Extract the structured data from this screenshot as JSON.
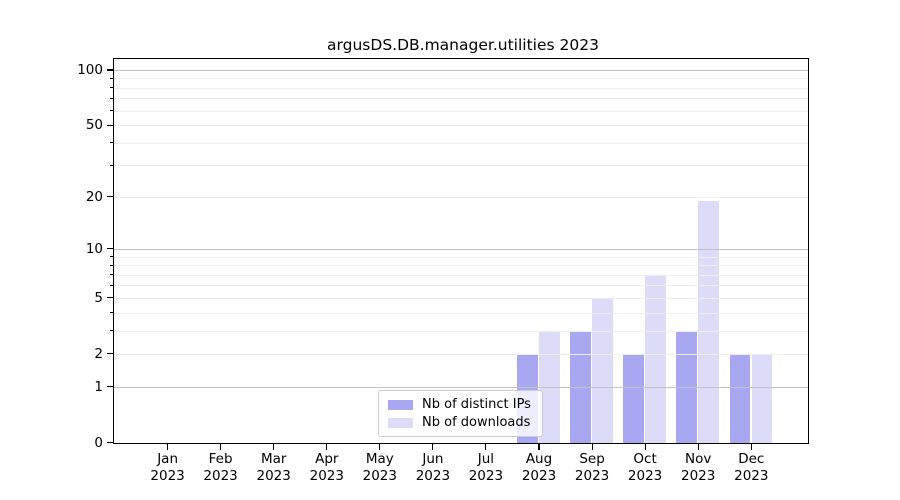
{
  "title": "argusDS.DB.manager.utilities 2023",
  "colors": {
    "bar_distinct_ips": "#a7a7f2",
    "bar_downloads": "#dcdcf8",
    "grid_major": "#c2c2c2",
    "grid_minor": "#ededed",
    "axis": "#000000",
    "legend_border": "#cccccc"
  },
  "y_axis": {
    "tick_labels": [
      "100",
      "50",
      "20",
      "10",
      "5",
      "2",
      "1",
      "0"
    ]
  },
  "x_axis": {
    "year": "2023",
    "months": [
      "Jan",
      "Feb",
      "Mar",
      "Apr",
      "May",
      "Jun",
      "Jul",
      "Aug",
      "Sep",
      "Oct",
      "Nov",
      "Dec"
    ]
  },
  "legend": {
    "items": [
      {
        "label": "Nb of distinct IPs",
        "color": "#a7a7f2"
      },
      {
        "label": "Nb of downloads",
        "color": "#dcdcf8"
      }
    ]
  },
  "chart_data": {
    "type": "bar",
    "title": "argusDS.DB.manager.utilities 2023",
    "categories": [
      "Jan 2023",
      "Feb 2023",
      "Mar 2023",
      "Apr 2023",
      "May 2023",
      "Jun 2023",
      "Jul 2023",
      "Aug 2023",
      "Sep 2023",
      "Oct 2023",
      "Nov 2023",
      "Dec 2023"
    ],
    "series": [
      {
        "name": "Nb of distinct IPs",
        "color": "#a7a7f2",
        "values": [
          0,
          0,
          0,
          0,
          0,
          0,
          0,
          2,
          3,
          2,
          3,
          2
        ]
      },
      {
        "name": "Nb of downloads",
        "color": "#dcdcf8",
        "values": [
          0,
          0,
          0,
          0,
          0,
          0,
          0,
          3,
          5,
          7,
          19,
          2
        ]
      }
    ],
    "yscale": "log1p",
    "yticks": [
      100,
      50,
      20,
      10,
      5,
      2,
      1,
      0
    ],
    "ylim": [
      0,
      114
    ],
    "grid": true,
    "legend_position": "inside lower center"
  }
}
